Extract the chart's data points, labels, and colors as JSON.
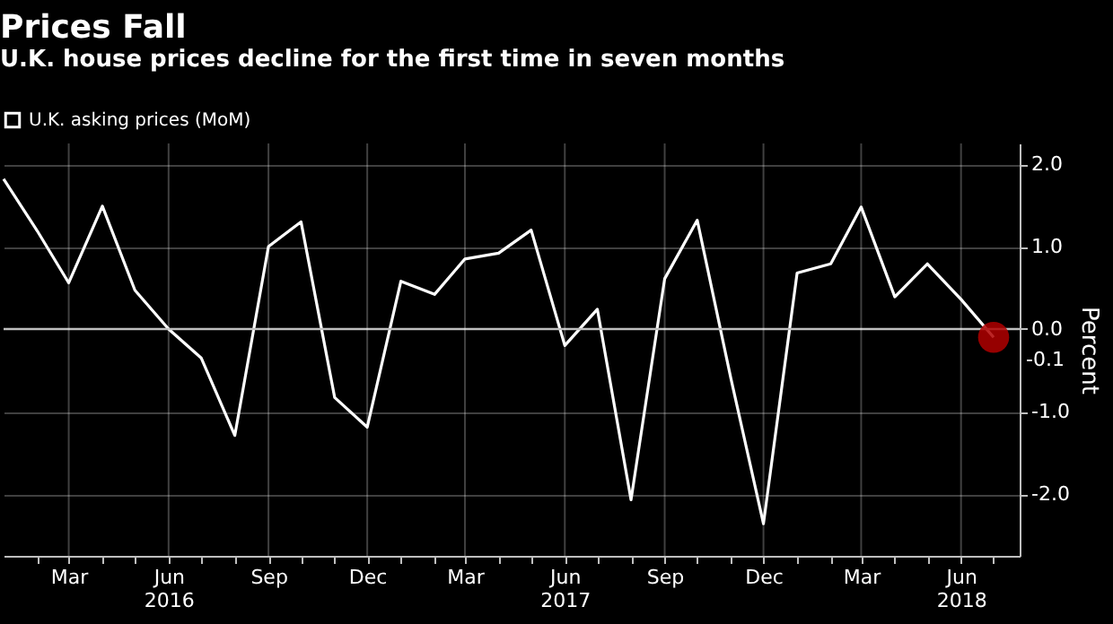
{
  "chart_data": {
    "type": "line",
    "title": "Prices Fall",
    "subtitle": "U.K. house prices decline for the first time in seven months",
    "ylabel": "Percent",
    "x": [
      "2016-01",
      "2016-02",
      "2016-03",
      "2016-04",
      "2016-05",
      "2016-06",
      "2016-07",
      "2016-08",
      "2016-09",
      "2016-10",
      "2016-11",
      "2016-12",
      "2017-01",
      "2017-02",
      "2017-03",
      "2017-04",
      "2017-05",
      "2017-06",
      "2017-07",
      "2017-08",
      "2017-09",
      "2017-10",
      "2017-11",
      "2017-12",
      "2018-01",
      "2018-02",
      "2018-03",
      "2018-04",
      "2018-05",
      "2018-06",
      "2018-07"
    ],
    "series": [
      {
        "name": "U.K. asking prices (MoM)",
        "color": "#ffffff",
        "values": [
          1.82,
          1.19,
          0.56,
          1.49,
          0.47,
          0.0,
          -0.35,
          -1.29,
          1.0,
          1.3,
          -0.83,
          -1.19,
          0.58,
          0.42,
          0.85,
          0.92,
          1.2,
          -0.2,
          0.24,
          -2.07,
          0.61,
          1.32,
          -0.6,
          -2.36,
          0.68,
          0.79,
          1.48,
          0.39,
          0.79,
          0.36,
          -0.1
        ],
        "value_labels": [
          null,
          null,
          null,
          null,
          null,
          null,
          null,
          null,
          null,
          null,
          null,
          null,
          null,
          null,
          null,
          null,
          null,
          null,
          null,
          null,
          null,
          null,
          null,
          null,
          null,
          null,
          null,
          null,
          null,
          null,
          "-0.1"
        ]
      }
    ],
    "xlim": [
      "2016-01",
      "2018-07-25"
    ],
    "xticks": [
      {
        "value": "2016-02",
        "label": null
      },
      {
        "value": "2016-03",
        "label": "Mar"
      },
      {
        "value": "2016-04",
        "label": null
      },
      {
        "value": "2016-05",
        "label": null
      },
      {
        "value": "2016-06",
        "label": "Jun\n2016"
      },
      {
        "value": "2016-07",
        "label": null
      },
      {
        "value": "2016-08",
        "label": null
      },
      {
        "value": "2016-09",
        "label": "Sep"
      },
      {
        "value": "2016-10",
        "label": null
      },
      {
        "value": "2016-11",
        "label": null
      },
      {
        "value": "2016-12",
        "label": "Dec"
      },
      {
        "value": "2017-01",
        "label": null
      },
      {
        "value": "2017-02",
        "label": null
      },
      {
        "value": "2017-03",
        "label": "Mar"
      },
      {
        "value": "2017-04",
        "label": null
      },
      {
        "value": "2017-05",
        "label": null
      },
      {
        "value": "2017-06",
        "label": "Jun\n2017"
      },
      {
        "value": "2017-07",
        "label": null
      },
      {
        "value": "2017-08",
        "label": null
      },
      {
        "value": "2017-09",
        "label": "Sep"
      },
      {
        "value": "2017-10",
        "label": null
      },
      {
        "value": "2017-11",
        "label": null
      },
      {
        "value": "2017-12",
        "label": "Dec"
      },
      {
        "value": "2018-01",
        "label": null
      },
      {
        "value": "2018-02",
        "label": null
      },
      {
        "value": "2018-03",
        "label": "Mar"
      },
      {
        "value": "2018-04",
        "label": null
      },
      {
        "value": "2018-05",
        "label": null
      },
      {
        "value": "2018-06",
        "label": "Jun\n2018"
      },
      {
        "value": "2018-07",
        "label": null
      }
    ],
    "ylim": [
      -2.75,
      2.25
    ],
    "yticks": [
      {
        "value": 2,
        "label": "2.0"
      },
      {
        "value": 1,
        "label": "1.0"
      },
      {
        "value": 0,
        "label": "0.0"
      },
      {
        "value": -1,
        "label": "-1.0"
      },
      {
        "value": -2,
        "label": "-2.0"
      }
    ],
    "ref_lines": [
      {
        "axis": "y",
        "value": 0,
        "color": "#bfbfbf"
      }
    ],
    "grid": true,
    "legend": "top left",
    "marker": "none",
    "line_style": "solid"
  }
}
